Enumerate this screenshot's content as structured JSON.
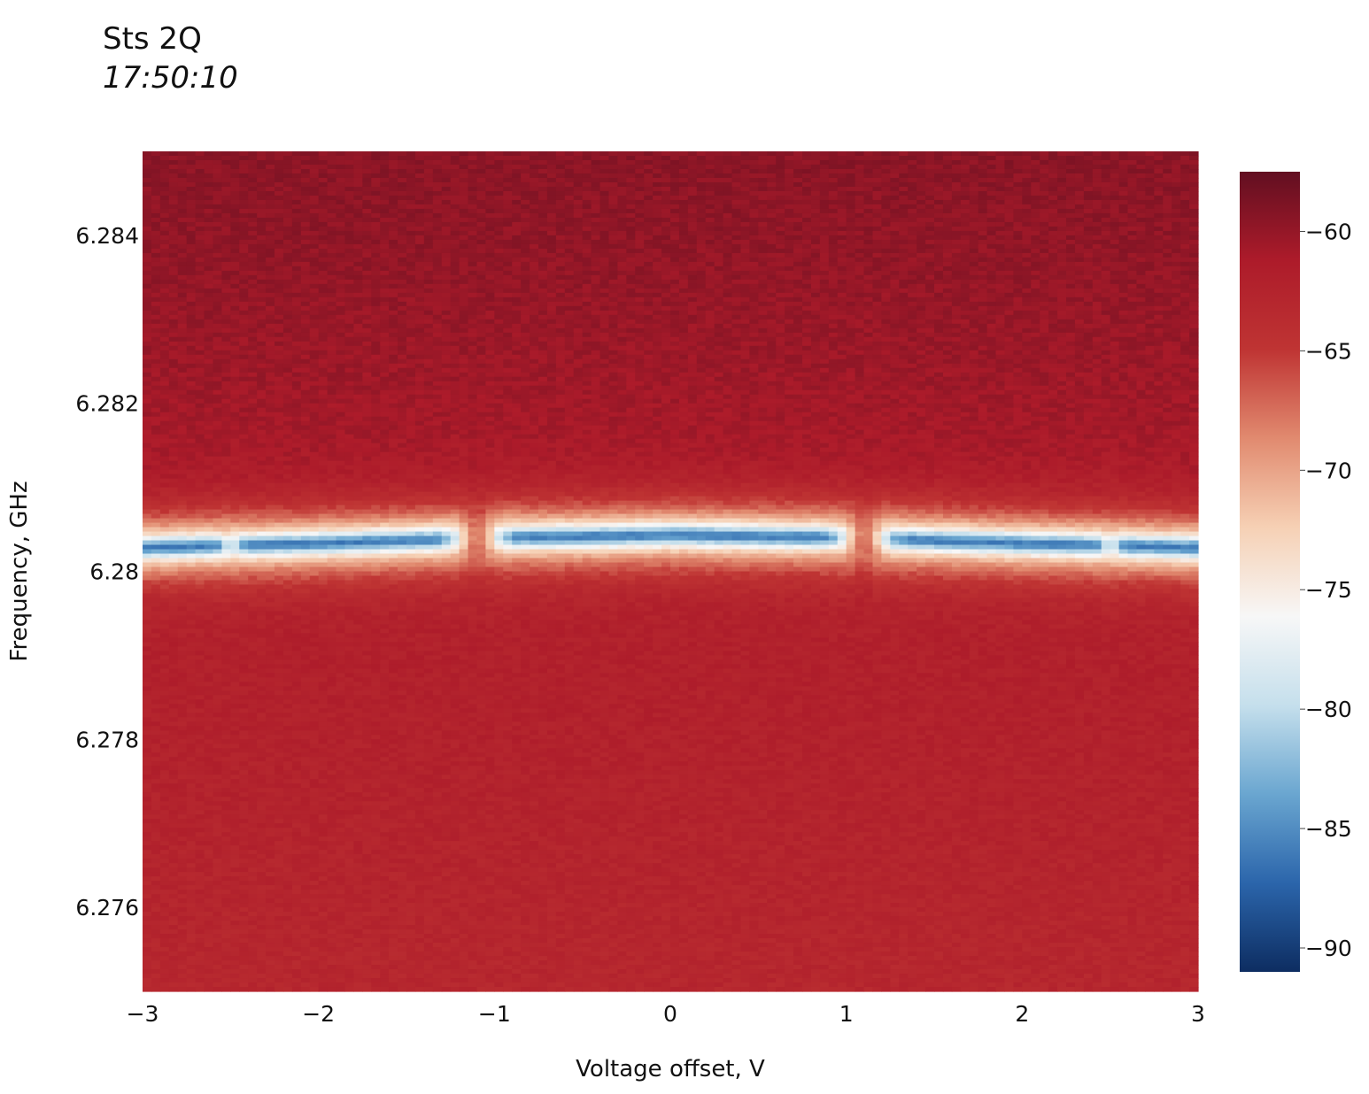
{
  "chart_data": {
    "type": "heatmap",
    "title": "Sts 2Q",
    "subtitle": "17:50:10",
    "xlabel": "Voltage offset, V",
    "ylabel": "Frequency, GHz",
    "xlim": [
      -3,
      3
    ],
    "ylim": [
      6.275,
      6.285
    ],
    "x_ticks": [
      {
        "value": -3,
        "label": "−3"
      },
      {
        "value": -2,
        "label": "−2"
      },
      {
        "value": -1,
        "label": "−1"
      },
      {
        "value": 0,
        "label": "0"
      },
      {
        "value": 1,
        "label": "1"
      },
      {
        "value": 2,
        "label": "2"
      },
      {
        "value": 3,
        "label": "3"
      }
    ],
    "y_ticks": [
      {
        "value": 6.284,
        "label": "6.284"
      },
      {
        "value": 6.282,
        "label": "6.282"
      },
      {
        "value": 6.28,
        "label": "6.28"
      },
      {
        "value": 6.278,
        "label": "6.278"
      },
      {
        "value": 6.276,
        "label": "6.276"
      }
    ],
    "colorbar": {
      "range": [
        -91,
        -57.5
      ],
      "ticks": [
        {
          "value": -60,
          "label": "−60"
        },
        {
          "value": -65,
          "label": "−65"
        },
        {
          "value": -70,
          "label": "−70"
        },
        {
          "value": -75,
          "label": "−75"
        },
        {
          "value": -80,
          "label": "−80"
        },
        {
          "value": -85,
          "label": "−85"
        },
        {
          "value": -90,
          "label": "−90"
        }
      ],
      "colorscale": "RdBu",
      "stops": [
        "#0d2d61",
        "#2b65ab",
        "#6aa6d0",
        "#c5dfec",
        "#f7f7f7",
        "#f6d0b4",
        "#e18a6f",
        "#bf3433",
        "#ad1b2a",
        "#620f21"
      ]
    },
    "resonance_dip": {
      "description_value_at_center": -86,
      "center_frequency_by_voltage": [
        {
          "x": -3,
          "y": 6.28028
        },
        {
          "x": -2,
          "y": 6.28033
        },
        {
          "x": -1,
          "y": 6.2804
        },
        {
          "x": 0,
          "y": 6.28043
        },
        {
          "x": 1,
          "y": 6.2804
        },
        {
          "x": 2,
          "y": 6.28033
        },
        {
          "x": 3,
          "y": 6.28028
        }
      ],
      "anticrossing_voltages": [
        -1.1,
        1.1,
        -2.5,
        2.5
      ]
    },
    "background_level": {
      "top": -59.5,
      "near_resonance_above": -62,
      "below_resonance": -61.5,
      "bottom": -63
    }
  }
}
